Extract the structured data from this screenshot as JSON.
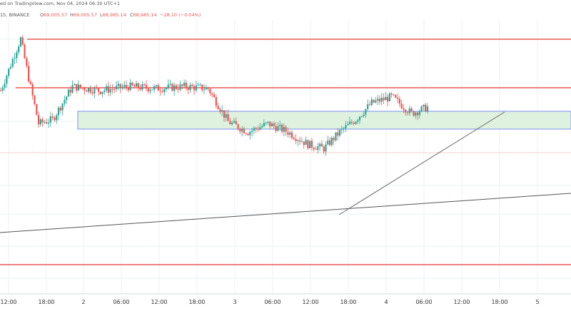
{
  "header": {
    "published_text": "ed on TradingView.com, Nov 04, 2024 06:30 UTC+1",
    "symbol_text": "15, BINANCE",
    "ohlc": [
      {
        "label": "O",
        "value": "69,005.57"
      },
      {
        "label": "H",
        "value": "69,005.57"
      },
      {
        "label": "L",
        "value": "68,985.14"
      },
      {
        "label": "C",
        "value": "68,985.14"
      }
    ],
    "change_text": "−28.10 (−0.04%)"
  },
  "colors": {
    "up": "#26a69a",
    "down": "#ef5350",
    "resistance_line": "#e53935",
    "zone_fill": "#dff2df",
    "zone_border": "#7b8ff0",
    "trendline": "#555555",
    "grid": "#eef0f3",
    "axis_text": "#333333"
  },
  "chart_data": {
    "type": "candlestick",
    "timeframe": "15",
    "exchange": "BINANCE",
    "x_tick_labels": [
      "12:00",
      "18:00",
      "2",
      "06:00",
      "12:00",
      "18:00",
      "3",
      "06:00",
      "12:00",
      "18:00",
      "4",
      "06:00",
      "12:00",
      "18:00",
      "5"
    ],
    "last_close": 68985.14,
    "trend_shape": [
      [
        0,
        0.7
      ],
      [
        10,
        0.95
      ],
      [
        14,
        0.76
      ],
      [
        19,
        0.54
      ],
      [
        26,
        0.56
      ],
      [
        36,
        0.72
      ],
      [
        50,
        0.7
      ],
      [
        64,
        0.72
      ],
      [
        78,
        0.71
      ],
      [
        92,
        0.72
      ],
      [
        104,
        0.71
      ],
      [
        114,
        0.55
      ],
      [
        124,
        0.5
      ],
      [
        134,
        0.54
      ],
      [
        144,
        0.5
      ],
      [
        154,
        0.44
      ],
      [
        162,
        0.42
      ],
      [
        170,
        0.5
      ],
      [
        178,
        0.56
      ],
      [
        186,
        0.64
      ],
      [
        196,
        0.67
      ],
      [
        206,
        0.59
      ],
      [
        214,
        0.62
      ]
    ],
    "annotations": {
      "horizontal_lines": 3,
      "zone": "green consolidation rectangle",
      "trendlines": 2
    }
  }
}
